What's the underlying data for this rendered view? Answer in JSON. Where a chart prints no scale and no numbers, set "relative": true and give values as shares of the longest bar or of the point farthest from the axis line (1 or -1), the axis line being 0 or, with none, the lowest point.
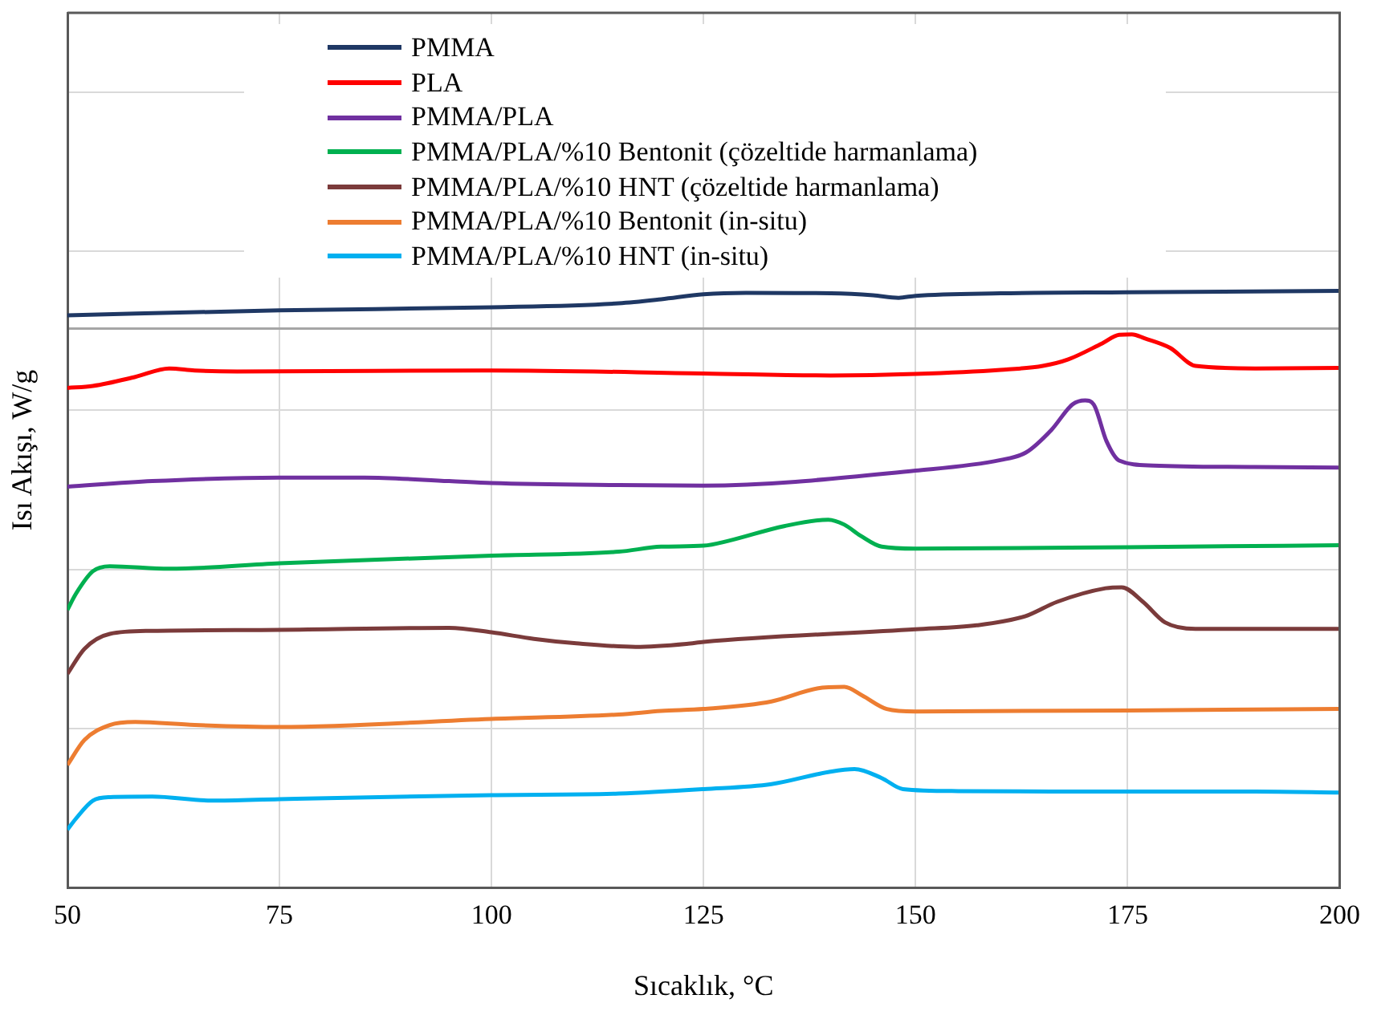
{
  "chart_data": {
    "type": "line",
    "xlabel": "Sıcaklık, °C",
    "ylabel": "Isı Akışı, W/g",
    "relative": true,
    "xlim": [
      50,
      200
    ],
    "xticks": [
      50,
      75,
      100,
      125,
      150,
      175,
      200
    ],
    "grid": true,
    "legend": "top",
    "marker": "none",
    "line_style": "solid",
    "series": [
      {
        "name": "PMMA",
        "color": "#1f3864",
        "x": [
          50,
          75,
          100,
          115,
          120,
          125,
          130,
          140,
          145,
          148,
          150,
          160,
          175,
          200
        ],
        "values": [
          0.027,
          0.037,
          0.043,
          0.051,
          0.059,
          0.069,
          0.072,
          0.071,
          0.067,
          0.062,
          0.066,
          0.071,
          0.073,
          0.076
        ]
      },
      {
        "name": "PLA",
        "color": "#ff0000",
        "x": [
          50,
          53,
          58,
          62,
          65,
          70,
          100,
          125,
          140,
          150,
          160,
          165,
          168,
          172,
          174,
          175.5,
          177,
          180,
          183,
          190,
          200
        ],
        "values": [
          -0.118,
          -0.114,
          -0.096,
          -0.079,
          -0.083,
          -0.085,
          -0.083,
          -0.089,
          -0.093,
          -0.09,
          -0.082,
          -0.074,
          -0.061,
          -0.029,
          -0.012,
          -0.011,
          -0.019,
          -0.038,
          -0.074,
          -0.079,
          -0.078
        ]
      },
      {
        "name": "PMMA/PLA",
        "color": "#7030a0",
        "x": [
          50,
          60,
          75,
          85,
          95,
          100,
          115,
          125,
          150,
          160,
          163,
          166,
          168.5,
          170,
          171,
          172.5,
          174,
          178,
          190,
          200
        ],
        "values": [
          -0.315,
          -0.304,
          -0.297,
          -0.297,
          -0.304,
          -0.308,
          -0.312,
          -0.313,
          -0.283,
          -0.262,
          -0.247,
          -0.202,
          -0.151,
          -0.143,
          -0.151,
          -0.224,
          -0.263,
          -0.273,
          -0.276,
          -0.277
        ]
      },
      {
        "name": "PMMA/PLA/%10 Bentonit (çözeltide harmanlama)",
        "color": "#00b050",
        "x": [
          50,
          51,
          53,
          55,
          62,
          75,
          100,
          115,
          120,
          125,
          128,
          134.5,
          139.7,
          141.6,
          143.5,
          146,
          150,
          175,
          200
        ],
        "values": [
          -0.561,
          -0.529,
          -0.484,
          -0.474,
          -0.479,
          -0.468,
          -0.453,
          -0.445,
          -0.435,
          -0.433,
          -0.423,
          -0.394,
          -0.381,
          -0.391,
          -0.413,
          -0.435,
          -0.439,
          -0.436,
          -0.432
        ]
      },
      {
        "name": "PMMA/PLA/%10 HNT (çözeltide harmanlama)",
        "color": "#7b3b3b",
        "x": [
          50,
          52,
          55,
          60,
          75,
          95,
          100,
          105,
          110,
          117,
          123,
          125,
          150,
          157.2,
          162.9,
          166.7,
          172.4,
          174.3,
          176.8,
          179.4,
          183,
          200
        ],
        "values": [
          -0.689,
          -0.639,
          -0.609,
          -0.603,
          -0.601,
          -0.597,
          -0.606,
          -0.619,
          -0.628,
          -0.635,
          -0.629,
          -0.625,
          -0.6,
          -0.592,
          -0.574,
          -0.545,
          -0.518,
          -0.516,
          -0.545,
          -0.586,
          -0.599,
          -0.599
        ]
      },
      {
        "name": "PMMA/PLA/%10 Bentonit (in-situ)",
        "color": "#ed7d31",
        "x": [
          50,
          52,
          55,
          58,
          65,
          75,
          100,
          115,
          120,
          125,
          133,
          138.4,
          141.6,
          143.7,
          146.6,
          150,
          175,
          200
        ],
        "values": [
          -0.871,
          -0.821,
          -0.791,
          -0.785,
          -0.791,
          -0.795,
          -0.779,
          -0.77,
          -0.763,
          -0.759,
          -0.744,
          -0.718,
          -0.715,
          -0.732,
          -0.759,
          -0.764,
          -0.762,
          -0.759
        ]
      },
      {
        "name": "PMMA/PLA/%10 HNT (in-situ)",
        "color": "#00b0f0",
        "x": [
          50,
          51,
          53,
          55,
          60,
          67,
          75,
          100,
          115,
          125,
          133,
          139.7,
          142.8,
          146,
          148.5,
          155,
          175,
          190,
          200
        ],
        "values": [
          -1.0,
          -0.978,
          -0.942,
          -0.935,
          -0.934,
          -0.942,
          -0.939,
          -0.931,
          -0.928,
          -0.919,
          -0.909,
          -0.885,
          -0.879,
          -0.897,
          -0.919,
          -0.923,
          -0.924,
          -0.924,
          -0.926
        ]
      }
    ]
  }
}
